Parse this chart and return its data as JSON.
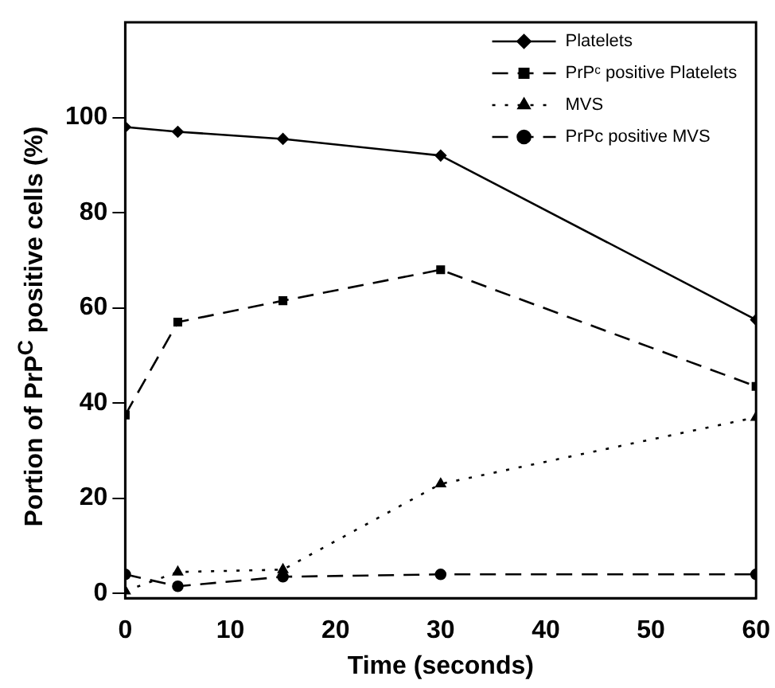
{
  "chart_data": {
    "type": "line",
    "xlabel": "Time (seconds)",
    "ylabel": "Portion of PrP$^{C}$ positive cells (%)",
    "x": [
      0,
      5,
      15,
      30,
      60
    ],
    "series": [
      {
        "name": "Platelets",
        "color": "#000000",
        "values": [
          98,
          97,
          95.5,
          92,
          57.5
        ],
        "marker": "diamond",
        "line_style": "solid"
      },
      {
        "name": "PrPᶜ positive Platelets",
        "color": "#000000",
        "values": [
          37.5,
          57,
          61.5,
          68,
          43.5
        ],
        "marker": "square",
        "line_style": "dashed"
      },
      {
        "name": "MVS",
        "color": "#000000",
        "values": [
          0.5,
          4.5,
          5,
          23,
          37
        ],
        "marker": "triangle",
        "line_style": "dotted"
      },
      {
        "name": "PrPc positive MVS",
        "color": "#000000",
        "values": [
          4,
          1.5,
          3.5,
          4,
          4
        ],
        "marker": "circle",
        "line_style": "dashed"
      }
    ],
    "xlim": [
      0,
      60
    ],
    "xticks": [
      0,
      10,
      20,
      30,
      40,
      50,
      60
    ],
    "ylim": [
      -1,
      120
    ],
    "yticks": [
      0,
      20,
      40,
      60,
      80,
      100
    ],
    "grid": false,
    "legend": "top right"
  }
}
